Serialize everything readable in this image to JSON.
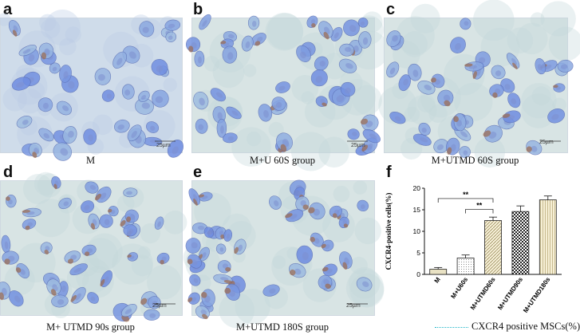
{
  "panels": [
    {
      "letter": "a",
      "caption": "M",
      "scale": "25µm",
      "cells": 40,
      "brown": 0.05
    },
    {
      "letter": "b",
      "caption": "M+U 60S group",
      "scale": "25µm",
      "cells": 44,
      "brown": 0.18
    },
    {
      "letter": "c",
      "caption": "M+UTMD 60S group",
      "scale": "25µm",
      "cells": 38,
      "brown": 0.45
    },
    {
      "letter": "d",
      "caption": "M+ UTMD 90s group",
      "scale": "25µm",
      "cells": 40,
      "brown": 0.55
    },
    {
      "letter": "e",
      "caption": "M+UTMD 180S group",
      "scale": "25µm",
      "cells": 42,
      "brown": 0.6
    }
  ],
  "chart_letter": "f",
  "chart_data": {
    "type": "bar",
    "categories": [
      "M",
      "M+U60s",
      "M+UTMD60s",
      "M+UTMD90s",
      "M+UTMD180s"
    ],
    "values": [
      1.2,
      3.8,
      12.5,
      14.6,
      17.3
    ],
    "errors": [
      0.4,
      0.7,
      0.8,
      1.3,
      0.9
    ],
    "ylabel": "CXCR4-positive cells(%)",
    "ylim": [
      0,
      20
    ],
    "yticks": [
      0,
      5,
      10,
      15,
      20
    ],
    "significance": [
      {
        "from": 0,
        "to": 2,
        "label": "**"
      },
      {
        "from": 1,
        "to": 2,
        "label": "**"
      }
    ],
    "legend": "CXCR4 positive  MSCs(%)",
    "grid": false
  },
  "colors": {
    "legend_line": "#22b6c8",
    "bar_fill": "#f4eed2",
    "bar_dark": "#222222"
  }
}
